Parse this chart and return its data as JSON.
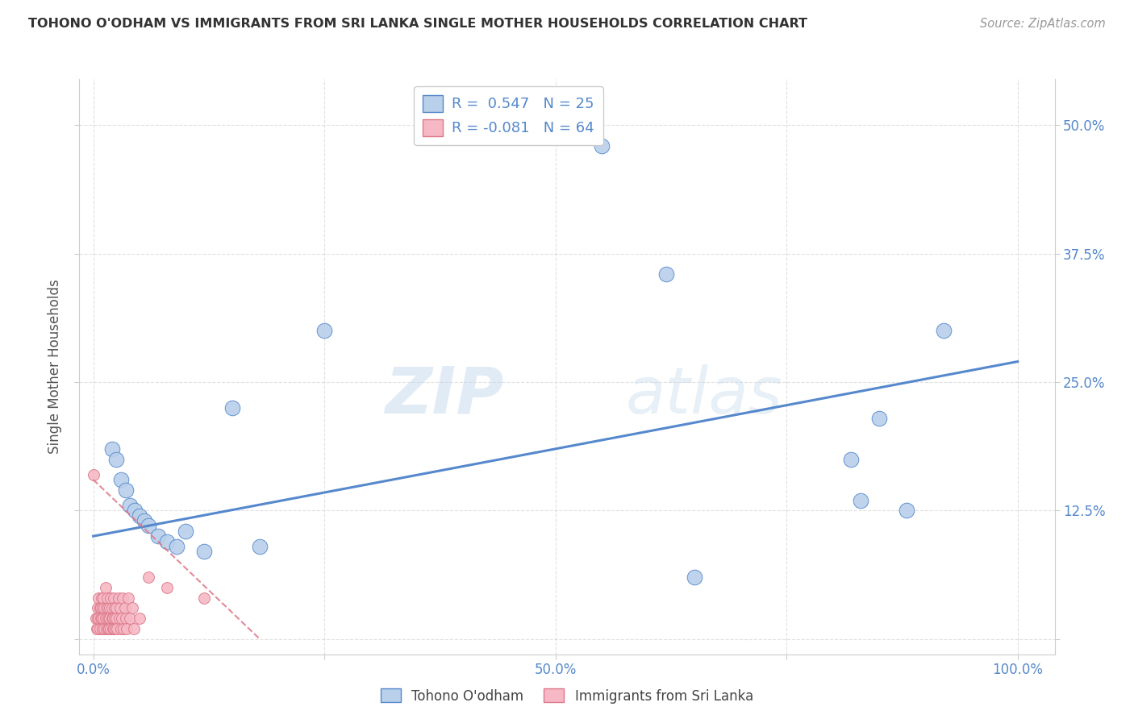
{
  "title": "TOHONO O'ODHAM VS IMMIGRANTS FROM SRI LANKA SINGLE MOTHER HOUSEHOLDS CORRELATION CHART",
  "source": "Source: ZipAtlas.com",
  "ylabel": "Single Mother Households",
  "x_ticks": [
    0.0,
    0.25,
    0.5,
    0.75,
    1.0
  ],
  "x_tick_labels": [
    "0.0%",
    "",
    "50.0%",
    "",
    "100.0%"
  ],
  "y_ticks": [
    0.0,
    0.125,
    0.25,
    0.375,
    0.5
  ],
  "y_tick_labels_right": [
    "",
    "12.5%",
    "25.0%",
    "37.5%",
    "50.0%"
  ],
  "xlim": [
    -0.015,
    1.04
  ],
  "ylim": [
    -0.015,
    0.545
  ],
  "r_blue": 0.547,
  "n_blue": 25,
  "r_pink": -0.081,
  "n_pink": 64,
  "blue_color": "#b8d0ea",
  "pink_color": "#f5b8c4",
  "blue_line_color": "#5588cc",
  "pink_line_color": "#dd7788",
  "legend_label_blue": "Tohono O'odham",
  "legend_label_pink": "Immigrants from Sri Lanka",
  "blue_scatter": [
    [
      0.02,
      0.185
    ],
    [
      0.025,
      0.175
    ],
    [
      0.03,
      0.155
    ],
    [
      0.035,
      0.145
    ],
    [
      0.04,
      0.13
    ],
    [
      0.045,
      0.125
    ],
    [
      0.05,
      0.12
    ],
    [
      0.055,
      0.115
    ],
    [
      0.06,
      0.11
    ],
    [
      0.07,
      0.1
    ],
    [
      0.08,
      0.095
    ],
    [
      0.09,
      0.09
    ],
    [
      0.1,
      0.105
    ],
    [
      0.12,
      0.085
    ],
    [
      0.15,
      0.225
    ],
    [
      0.18,
      0.09
    ],
    [
      0.25,
      0.3
    ],
    [
      0.55,
      0.48
    ],
    [
      0.62,
      0.355
    ],
    [
      0.65,
      0.06
    ],
    [
      0.82,
      0.175
    ],
    [
      0.83,
      0.135
    ],
    [
      0.85,
      0.215
    ],
    [
      0.88,
      0.125
    ],
    [
      0.92,
      0.3
    ]
  ],
  "pink_scatter": [
    [
      0.0,
      0.16
    ],
    [
      0.003,
      0.02
    ],
    [
      0.004,
      0.01
    ],
    [
      0.005,
      0.01
    ],
    [
      0.005,
      0.02
    ],
    [
      0.005,
      0.03
    ],
    [
      0.006,
      0.02
    ],
    [
      0.006,
      0.04
    ],
    [
      0.007,
      0.01
    ],
    [
      0.007,
      0.03
    ],
    [
      0.008,
      0.02
    ],
    [
      0.008,
      0.03
    ],
    [
      0.009,
      0.04
    ],
    [
      0.009,
      0.02
    ],
    [
      0.01,
      0.01
    ],
    [
      0.01,
      0.03
    ],
    [
      0.011,
      0.02
    ],
    [
      0.011,
      0.04
    ],
    [
      0.012,
      0.01
    ],
    [
      0.012,
      0.03
    ],
    [
      0.013,
      0.02
    ],
    [
      0.013,
      0.05
    ],
    [
      0.014,
      0.01
    ],
    [
      0.014,
      0.03
    ],
    [
      0.015,
      0.02
    ],
    [
      0.015,
      0.04
    ],
    [
      0.016,
      0.01
    ],
    [
      0.016,
      0.03
    ],
    [
      0.017,
      0.02
    ],
    [
      0.017,
      0.01
    ],
    [
      0.018,
      0.03
    ],
    [
      0.018,
      0.02
    ],
    [
      0.019,
      0.01
    ],
    [
      0.019,
      0.04
    ],
    [
      0.02,
      0.02
    ],
    [
      0.02,
      0.03
    ],
    [
      0.021,
      0.01
    ],
    [
      0.021,
      0.02
    ],
    [
      0.022,
      0.04
    ],
    [
      0.022,
      0.01
    ],
    [
      0.023,
      0.03
    ],
    [
      0.023,
      0.02
    ],
    [
      0.024,
      0.01
    ],
    [
      0.025,
      0.03
    ],
    [
      0.025,
      0.02
    ],
    [
      0.026,
      0.01
    ],
    [
      0.027,
      0.04
    ],
    [
      0.028,
      0.02
    ],
    [
      0.029,
      0.03
    ],
    [
      0.03,
      0.01
    ],
    [
      0.031,
      0.02
    ],
    [
      0.032,
      0.04
    ],
    [
      0.033,
      0.01
    ],
    [
      0.034,
      0.03
    ],
    [
      0.035,
      0.02
    ],
    [
      0.036,
      0.01
    ],
    [
      0.038,
      0.04
    ],
    [
      0.04,
      0.02
    ],
    [
      0.042,
      0.03
    ],
    [
      0.044,
      0.01
    ],
    [
      0.05,
      0.02
    ],
    [
      0.06,
      0.06
    ],
    [
      0.08,
      0.05
    ],
    [
      0.12,
      0.04
    ]
  ],
  "blue_line_x": [
    0.0,
    1.0
  ],
  "blue_line_y": [
    0.1,
    0.27
  ],
  "pink_line_x": [
    0.0,
    0.18
  ],
  "pink_line_y": [
    0.155,
    0.0
  ],
  "watermark_zip": "ZIP",
  "watermark_atlas": "atlas",
  "background_color": "#ffffff",
  "grid_color": "#cccccc",
  "title_color": "#333333",
  "tick_color": "#5588cc",
  "ylabel_color": "#555555",
  "source_color": "#999999"
}
